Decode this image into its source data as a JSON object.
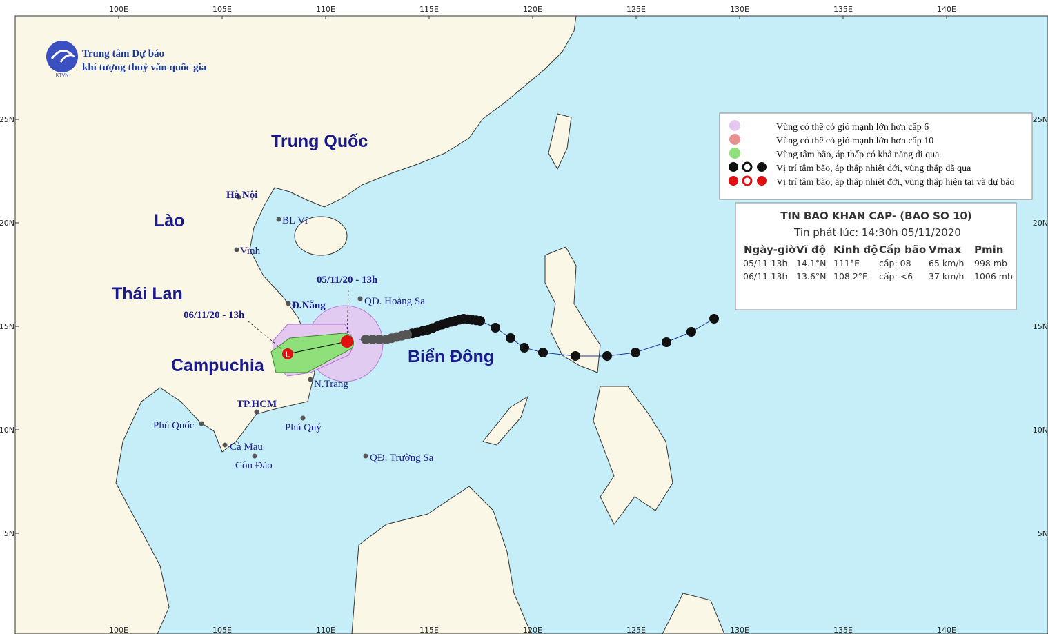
{
  "header": {
    "org_line1": "Trung tâm Dự báo",
    "org_line2": "khí tượng thuỷ văn quốc gia",
    "logo_text": "KTVN"
  },
  "axes": {
    "lon_labels": [
      "100E",
      "105E",
      "110E",
      "115E",
      "120E",
      "125E",
      "130E",
      "135E",
      "140E"
    ],
    "lat_labels": [
      "25N",
      "20N",
      "15N",
      "10N",
      "5N"
    ]
  },
  "places": {
    "countries": [
      "Trung Quốc",
      "Lào",
      "Thái Lan",
      "Campuchia",
      "Biển Đông"
    ],
    "cities": [
      "Hà Nội",
      "BL Vĩ",
      "Vinh",
      "Đ.Nẵng",
      "QĐ. Hoàng Sa",
      "N.Trang",
      "TP.HCM",
      "Phú Quốc",
      "Phú Quý",
      "Cà Mau",
      "Côn Đảo",
      "QĐ. Trường Sa"
    ]
  },
  "track_labels": [
    "05/11/20 - 13h",
    "06/11/20 - 13h"
  ],
  "legend": {
    "items": [
      "Vùng có thể có gió mạnh lớn hơn cấp 6",
      "Vùng có thể có gió mạnh lớn hơn cấp 10",
      "Vùng tâm bão, áp thấp có khả năng đi qua",
      "Vị trí tâm bão, áp thấp nhiệt đới, vùng thấp đã qua",
      "Vị trí tâm bão, áp thấp nhiệt đới, vùng thấp hiện tại và dự báo"
    ]
  },
  "bulletin": {
    "title": "TIN BAO KHAN CAP- (BAO SO 10)",
    "issued": "Tin phát lúc: 14:30h 05/11/2020",
    "table": {
      "headers": [
        "Ngày-giờ",
        "Vĩ độ",
        "Kinh độ",
        "Cấp bão",
        "Vmax",
        "Pmin"
      ],
      "rows": [
        [
          "05/11-13h",
          "14.1°N",
          "111°E",
          "cấp: 08",
          "65 km/h",
          "998 mb"
        ],
        [
          "06/11-13h",
          "13.6°N",
          "108.2°E",
          "cấp: <6",
          "37 km/h",
          "1006 mb"
        ]
      ]
    }
  }
}
